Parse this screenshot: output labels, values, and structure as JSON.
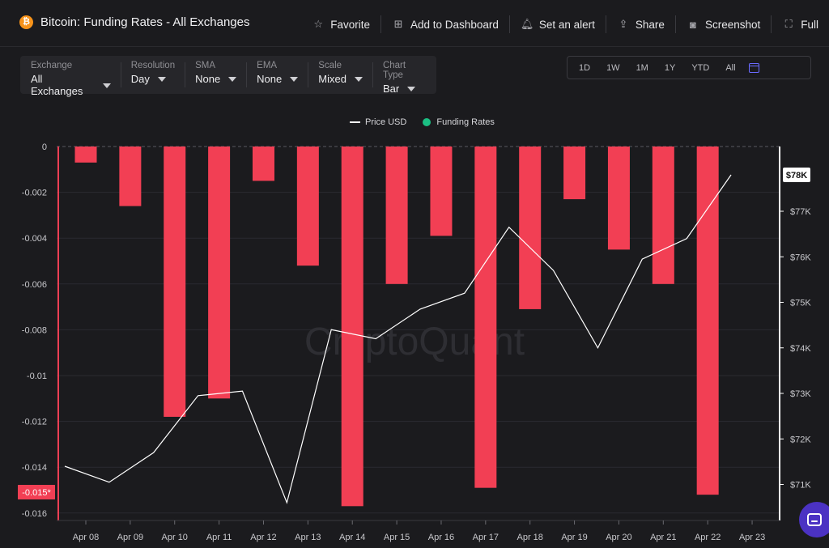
{
  "header": {
    "title": "Bitcoin: Funding Rates - All Exchanges",
    "coin_icon": "bitcoin-icon",
    "actions": [
      {
        "label": "Favorite",
        "icon": "star-icon"
      },
      {
        "label": "Add to Dashboard",
        "icon": "dashboard-add-icon"
      },
      {
        "label": "Set an alert",
        "icon": "bell-icon"
      },
      {
        "label": "Share",
        "icon": "share-icon"
      },
      {
        "label": "Screenshot",
        "icon": "camera-icon"
      },
      {
        "label": "Full",
        "icon": "fullscreen-icon"
      }
    ]
  },
  "controls": [
    {
      "label": "Exchange",
      "value": "All Exchanges"
    },
    {
      "label": "Resolution",
      "value": "Day"
    },
    {
      "label": "SMA",
      "value": "None"
    },
    {
      "label": "EMA",
      "value": "None"
    },
    {
      "label": "Scale",
      "value": "Mixed"
    },
    {
      "label": "Chart Type",
      "value": "Bar"
    }
  ],
  "ranges": [
    "1D",
    "1W",
    "1M",
    "1Y",
    "YTD",
    "All"
  ],
  "legend": {
    "price": "Price USD",
    "funding": "Funding Rates"
  },
  "watermark": "CryptoQuant",
  "colors": {
    "bar": "#f23f54",
    "price_line": "#ffffff",
    "funding_legend": "#1bbf83",
    "accent": "#4b32c3"
  },
  "chart_data": {
    "type": "bar",
    "categories": [
      "Apr 08",
      "Apr 09",
      "Apr 10",
      "Apr 11",
      "Apr 12",
      "Apr 13",
      "Apr 14",
      "Apr 15",
      "Apr 16",
      "Apr 17",
      "Apr 18",
      "Apr 19",
      "Apr 20",
      "Apr 21",
      "Apr 22",
      "Apr 23"
    ],
    "series": [
      {
        "name": "Funding Rates",
        "axis": "left",
        "values": [
          -0.0007,
          -0.0026,
          -0.0118,
          -0.011,
          -0.0015,
          -0.0052,
          -0.0157,
          -0.006,
          -0.0039,
          -0.0149,
          -0.0071,
          -0.0023,
          -0.0045,
          -0.006,
          -0.0152,
          null
        ]
      },
      {
        "name": "Price USD",
        "axis": "right",
        "type": "line",
        "values": [
          71400,
          71050,
          71700,
          72950,
          73050,
          70600,
          74400,
          74200,
          74850,
          75200,
          76650,
          75700,
          74000,
          75950,
          76400,
          77800
        ]
      }
    ],
    "left_axis": {
      "ticks": [
        0,
        -0.002,
        -0.004,
        -0.006,
        -0.008,
        -0.01,
        -0.012,
        -0.014,
        -0.016
      ],
      "ylim": [
        -0.0163,
        0
      ]
    },
    "right_axis": {
      "ticks": [
        "$71K",
        "$72K",
        "$73K",
        "$74K",
        "$75K",
        "$76K",
        "$77K"
      ],
      "ylim": [
        70350,
        78370
      ]
    },
    "last_price_label": "$78K",
    "min_value_label": "-0.015*",
    "legend_position": "top-center",
    "grid": true
  }
}
